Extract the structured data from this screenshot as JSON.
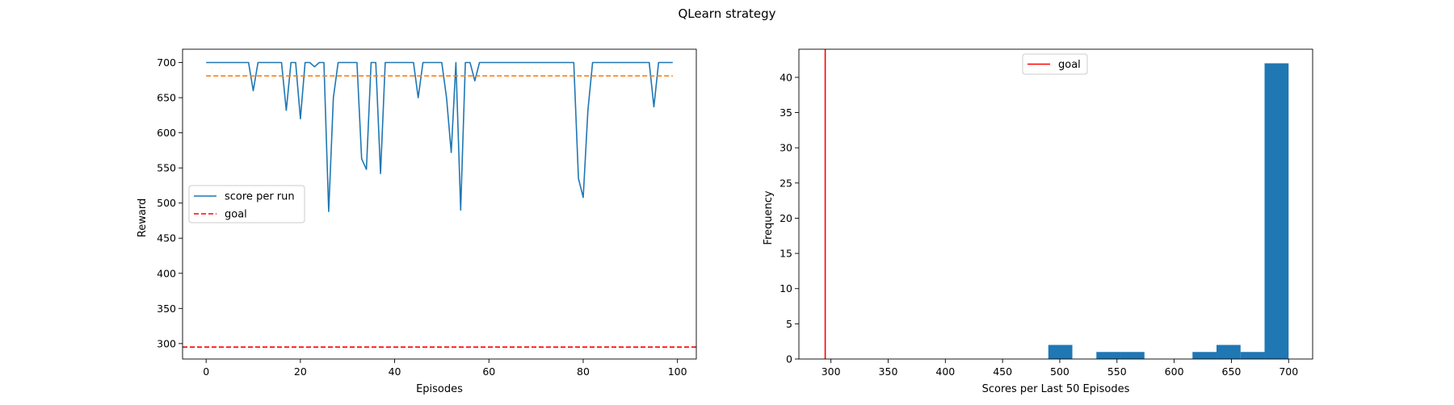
{
  "figure": {
    "title": "QLearn strategy"
  },
  "chart_data": [
    {
      "type": "line",
      "xlabel": "Episodes",
      "ylabel": "Reward",
      "xlim": [
        -5,
        104
      ],
      "ylim": [
        278,
        719
      ],
      "xticks": [
        0,
        20,
        40,
        60,
        80,
        100
      ],
      "yticks": [
        300,
        350,
        400,
        450,
        500,
        550,
        600,
        650,
        700
      ],
      "x": [
        0,
        1,
        2,
        3,
        4,
        5,
        6,
        7,
        8,
        9,
        10,
        11,
        12,
        13,
        14,
        15,
        16,
        17,
        18,
        19,
        20,
        21,
        22,
        23,
        24,
        25,
        26,
        27,
        28,
        29,
        30,
        31,
        32,
        33,
        34,
        35,
        36,
        37,
        38,
        39,
        40,
        41,
        42,
        43,
        44,
        45,
        46,
        47,
        48,
        49,
        50,
        51,
        52,
        53,
        54,
        55,
        56,
        57,
        58,
        59,
        60,
        61,
        62,
        63,
        64,
        65,
        66,
        67,
        68,
        69,
        70,
        71,
        72,
        73,
        74,
        75,
        76,
        77,
        78,
        79,
        80,
        81,
        82,
        83,
        84,
        85,
        86,
        87,
        88,
        89,
        90,
        91,
        92,
        93,
        94,
        95,
        96,
        97,
        98,
        99
      ],
      "series": [
        {
          "name": "score per run",
          "color": "#1f77b4",
          "style": "solid",
          "values": [
            700,
            700,
            700,
            700,
            700,
            700,
            700,
            700,
            700,
            700,
            660,
            700,
            700,
            700,
            700,
            700,
            700,
            632,
            700,
            700,
            620,
            700,
            700,
            694,
            700,
            700,
            488,
            650,
            700,
            700,
            700,
            700,
            700,
            563,
            548,
            700,
            700,
            542,
            700,
            700,
            700,
            700,
            700,
            700,
            700,
            650,
            700,
            700,
            700,
            700,
            700,
            650,
            572,
            700,
            490,
            700,
            700,
            674,
            700,
            700,
            700,
            700,
            700,
            700,
            700,
            700,
            700,
            700,
            700,
            700,
            700,
            700,
            700,
            700,
            700,
            700,
            700,
            700,
            700,
            535,
            508,
            632,
            700,
            700,
            700,
            700,
            700,
            700,
            700,
            700,
            700,
            700,
            700,
            700,
            700,
            637,
            700,
            700,
            700,
            700
          ]
        },
        {
          "name": "",
          "color": "#ff7f0e",
          "style": "dashed",
          "constant": 681
        },
        {
          "name": "goal",
          "color": "#ff0000",
          "style": "dashed",
          "constant": 295
        }
      ],
      "legend": {
        "placement": "center-left",
        "entries": [
          {
            "label": "score per run",
            "color": "#1f77b4",
            "style": "solid"
          },
          {
            "label": "goal",
            "color": "#ff0000",
            "style": "dashed"
          }
        ]
      },
      "grid": false
    },
    {
      "type": "bar",
      "subtype": "histogram",
      "xlabel": "Scores per Last 50 Episodes",
      "ylabel": "Frequency",
      "xlim": [
        272,
        721
      ],
      "ylim": [
        0,
        44
      ],
      "xticks": [
        300,
        350,
        400,
        450,
        500,
        550,
        600,
        650,
        700
      ],
      "yticks": [
        0,
        5,
        10,
        15,
        20,
        25,
        30,
        35,
        40
      ],
      "bin_edges": [
        490,
        511,
        532,
        553,
        574,
        595,
        616,
        637,
        658,
        679,
        700
      ],
      "counts": [
        2,
        0,
        1,
        1,
        0,
        0,
        1,
        2,
        1,
        42
      ],
      "bar_color": "#1f77b4",
      "goal": {
        "label": "goal",
        "value": 295,
        "color": "#ff0000",
        "style": "solid"
      },
      "legend": {
        "placement": "top-center",
        "entries": [
          {
            "label": "goal",
            "color": "#ff0000",
            "style": "solid"
          }
        ]
      },
      "grid": false
    }
  ]
}
